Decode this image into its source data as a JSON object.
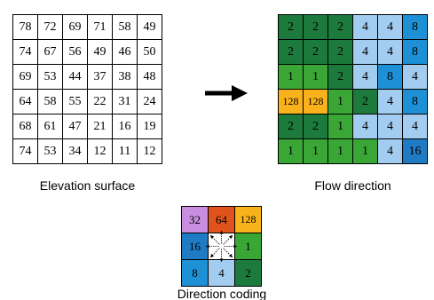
{
  "colors": {
    "c1": "#3aa636",
    "c2": "#1c7a3c",
    "c4": "#a3cdf0",
    "c8": "#1e90d6",
    "c16": "#1e7bc4",
    "c32": "#c98ee0",
    "c64": "#e0531d",
    "c128": "#f9b21b"
  },
  "elevation": {
    "caption": "Elevation surface",
    "rows": [
      [
        "78",
        "72",
        "69",
        "71",
        "58",
        "49"
      ],
      [
        "74",
        "67",
        "56",
        "49",
        "46",
        "50"
      ],
      [
        "69",
        "53",
        "44",
        "37",
        "38",
        "48"
      ],
      [
        "64",
        "58",
        "55",
        "22",
        "31",
        "24"
      ],
      [
        "68",
        "61",
        "47",
        "21",
        "16",
        "19"
      ],
      [
        "74",
        "53",
        "34",
        "12",
        "11",
        "12"
      ]
    ]
  },
  "flow": {
    "caption": "Flow direction",
    "rows": [
      [
        "2",
        "2",
        "2",
        "4",
        "4",
        "8"
      ],
      [
        "2",
        "2",
        "2",
        "4",
        "4",
        "8"
      ],
      [
        "1",
        "1",
        "2",
        "4",
        "8",
        "4"
      ],
      [
        "128",
        "128",
        "1",
        "2",
        "4",
        "8"
      ],
      [
        "2",
        "2",
        "1",
        "4",
        "4",
        "4"
      ],
      [
        "1",
        "1",
        "1",
        "1",
        "4",
        "16"
      ]
    ]
  },
  "coding": {
    "caption": "Direction coding",
    "cells": [
      "32",
      "64",
      "128",
      "16",
      "",
      "1",
      "8",
      "4",
      "2"
    ]
  }
}
